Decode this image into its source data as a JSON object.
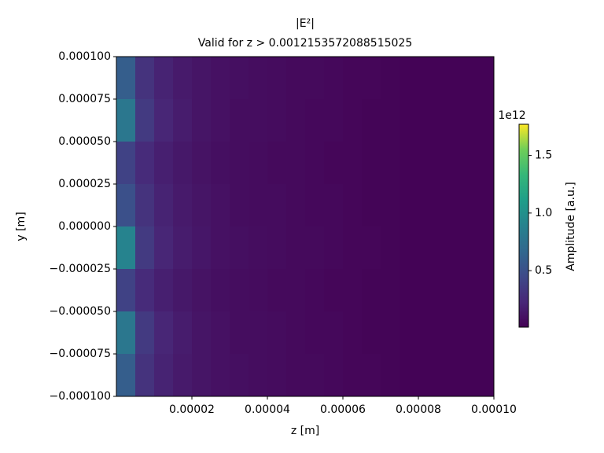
{
  "chart_data": {
    "type": "heatmap",
    "title": "|E²|",
    "subtitle": "Valid for z > 0.0012153572088515025",
    "x_label": "z [m]",
    "y_label": "y [m]",
    "xlim": [
      0,
      0.0001
    ],
    "ylim": [
      -0.0001,
      0.0001
    ],
    "xticks": [
      {
        "value": 2e-05,
        "label": "0.00002"
      },
      {
        "value": 4e-05,
        "label": "0.00004"
      },
      {
        "value": 6e-05,
        "label": "0.00006"
      },
      {
        "value": 8e-05,
        "label": "0.00008"
      },
      {
        "value": 0.0001,
        "label": "0.00010"
      }
    ],
    "yticks": [
      {
        "value": 0.0001,
        "label": "0.000100"
      },
      {
        "value": 7.5e-05,
        "label": "0.000075"
      },
      {
        "value": 5e-05,
        "label": "0.000050"
      },
      {
        "value": 2.5e-05,
        "label": "0.000025"
      },
      {
        "value": 0,
        "label": "0.000000"
      },
      {
        "value": -2.5e-05,
        "label": "−0.000025"
      },
      {
        "value": -5e-05,
        "label": "−0.000050"
      },
      {
        "value": -7.5e-05,
        "label": "−0.000075"
      },
      {
        "value": -0.0001,
        "label": "−0.000100"
      }
    ],
    "colormap": "viridis",
    "colorbar_label": "Amplitude [a.u.]",
    "colorbar_offset": "1e12",
    "clim": [
      0.01,
      1.77
    ],
    "cticks": [
      0.5,
      {
        "value": 1.0,
        "label": "1.0"
      },
      1.5
    ],
    "z": [
      [
        0.6,
        0.3,
        0.2,
        0.15,
        0.12,
        0.1,
        0.09,
        0.08,
        0.07,
        0.06,
        0.06,
        0.05,
        0.04,
        0.04,
        0.03,
        0.02,
        0.02,
        0.02,
        0.02,
        0.02
      ],
      [
        0.8,
        0.35,
        0.22,
        0.16,
        0.12,
        0.1,
        0.08,
        0.08,
        0.07,
        0.06,
        0.05,
        0.05,
        0.04,
        0.03,
        0.03,
        0.02,
        0.02,
        0.02,
        0.02,
        0.02
      ],
      [
        0.4,
        0.25,
        0.18,
        0.14,
        0.11,
        0.09,
        0.08,
        0.07,
        0.06,
        0.06,
        0.05,
        0.04,
        0.04,
        0.03,
        0.03,
        0.02,
        0.02,
        0.02,
        0.02,
        0.02
      ],
      [
        0.5,
        0.3,
        0.2,
        0.15,
        0.12,
        0.1,
        0.08,
        0.07,
        0.07,
        0.06,
        0.05,
        0.05,
        0.04,
        0.03,
        0.03,
        0.02,
        0.02,
        0.02,
        0.02,
        0.02
      ],
      [
        0.9,
        0.35,
        0.22,
        0.16,
        0.13,
        0.1,
        0.09,
        0.08,
        0.07,
        0.06,
        0.06,
        0.05,
        0.04,
        0.04,
        0.03,
        0.02,
        0.02,
        0.02,
        0.02,
        0.02
      ],
      [
        0.4,
        0.25,
        0.18,
        0.14,
        0.11,
        0.09,
        0.08,
        0.07,
        0.06,
        0.06,
        0.05,
        0.04,
        0.04,
        0.03,
        0.03,
        0.02,
        0.02,
        0.02,
        0.02,
        0.02
      ],
      [
        0.8,
        0.35,
        0.22,
        0.16,
        0.12,
        0.1,
        0.08,
        0.08,
        0.07,
        0.06,
        0.05,
        0.05,
        0.04,
        0.03,
        0.03,
        0.02,
        0.02,
        0.02,
        0.02,
        0.02
      ],
      [
        0.6,
        0.3,
        0.2,
        0.15,
        0.12,
        0.1,
        0.09,
        0.08,
        0.07,
        0.06,
        0.06,
        0.05,
        0.04,
        0.04,
        0.03,
        0.02,
        0.02,
        0.02,
        0.02,
        0.02
      ]
    ]
  }
}
